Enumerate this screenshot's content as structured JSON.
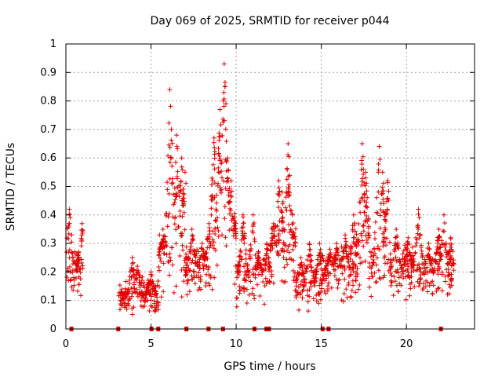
{
  "chart_data": {
    "type": "scatter",
    "title": "Day 069 of 2025, SRMTID for receiver p044",
    "xlabel": "GPS time / hours",
    "ylabel": "SRMTID / TECUs",
    "xlim": [
      0,
      24
    ],
    "ylim": [
      0,
      1
    ],
    "grid": true,
    "marker": "+",
    "color": "#e00000",
    "x_ticks": [
      0,
      5,
      10,
      15,
      20
    ],
    "x_tick_labels": [
      "0",
      "5",
      "10",
      "15",
      "20"
    ],
    "y_ticks": [
      0,
      0.1,
      0.2,
      0.3,
      0.4,
      0.5,
      0.6,
      0.7,
      0.8,
      0.9,
      1
    ],
    "y_tick_labels": [
      "0",
      "0.1",
      "0.2",
      "0.3",
      "0.4",
      "0.5",
      "0.6",
      "0.7",
      "0.8",
      "0.9",
      "1"
    ],
    "zero_markers_x": [
      0.35,
      3.1,
      5.05,
      5.45,
      7.1,
      8.4,
      9.25,
      11.1,
      11.8,
      11.95,
      15.1,
      15.45,
      22.05
    ],
    "segments": [
      {
        "start": 0.0,
        "end": 1.0,
        "base": 0.2,
        "amp": 0.08,
        "peaks": [
          [
            0.2,
            0.42
          ],
          [
            0.95,
            0.37
          ]
        ]
      },
      {
        "start": 3.1,
        "end": 5.45,
        "base": 0.11,
        "amp": 0.06,
        "peaks": [
          [
            3.9,
            0.25
          ],
          [
            4.2,
            0.22
          ],
          [
            5.0,
            0.2
          ]
        ]
      },
      {
        "start": 5.45,
        "end": 7.0,
        "base": 0.23,
        "amp": 0.12,
        "peaks": [
          [
            5.7,
            0.35
          ],
          [
            6.1,
            0.84
          ],
          [
            6.2,
            0.7
          ],
          [
            6.5,
            0.68
          ],
          [
            6.8,
            0.6
          ],
          [
            7.0,
            0.55
          ]
        ]
      },
      {
        "start": 7.0,
        "end": 8.5,
        "base": 0.2,
        "amp": 0.08,
        "peaks": [
          [
            7.4,
            0.35
          ],
          [
            8.0,
            0.3
          ],
          [
            8.4,
            0.37
          ]
        ]
      },
      {
        "start": 8.5,
        "end": 10.0,
        "base": 0.28,
        "amp": 0.15,
        "peaks": [
          [
            8.7,
            0.67
          ],
          [
            9.05,
            0.77
          ],
          [
            9.3,
            0.93
          ],
          [
            9.35,
            0.85
          ],
          [
            9.5,
            0.6
          ],
          [
            9.7,
            0.52
          ],
          [
            9.9,
            0.38
          ]
        ]
      },
      {
        "start": 10.0,
        "end": 12.0,
        "base": 0.18,
        "amp": 0.08,
        "peaks": [
          [
            10.4,
            0.4
          ],
          [
            11.0,
            0.4
          ],
          [
            11.3,
            0.27
          ],
          [
            11.8,
            0.3
          ]
        ]
      },
      {
        "start": 12.0,
        "end": 13.5,
        "base": 0.24,
        "amp": 0.12,
        "peaks": [
          [
            12.2,
            0.37
          ],
          [
            12.5,
            0.52
          ],
          [
            12.7,
            0.48
          ],
          [
            13.05,
            0.65
          ],
          [
            13.3,
            0.4
          ]
        ]
      },
      {
        "start": 13.5,
        "end": 15.0,
        "base": 0.15,
        "amp": 0.07,
        "peaks": [
          [
            13.8,
            0.25
          ],
          [
            14.3,
            0.3
          ],
          [
            14.9,
            0.3
          ]
        ]
      },
      {
        "start": 15.0,
        "end": 17.0,
        "base": 0.19,
        "amp": 0.08,
        "peaks": [
          [
            15.5,
            0.28
          ],
          [
            15.9,
            0.3
          ],
          [
            16.4,
            0.33
          ],
          [
            16.9,
            0.4
          ]
        ]
      },
      {
        "start": 17.0,
        "end": 19.0,
        "base": 0.23,
        "amp": 0.12,
        "peaks": [
          [
            17.4,
            0.65
          ],
          [
            17.6,
            0.55
          ],
          [
            18.4,
            0.64
          ],
          [
            18.6,
            0.55
          ],
          [
            18.9,
            0.52
          ]
        ]
      },
      {
        "start": 19.0,
        "end": 21.0,
        "base": 0.2,
        "amp": 0.08,
        "peaks": [
          [
            19.4,
            0.35
          ],
          [
            20.1,
            0.32
          ],
          [
            20.7,
            0.42
          ]
        ]
      },
      {
        "start": 21.0,
        "end": 22.8,
        "base": 0.18,
        "amp": 0.07,
        "peaks": [
          [
            21.3,
            0.3
          ],
          [
            21.9,
            0.35
          ],
          [
            22.2,
            0.4
          ],
          [
            22.6,
            0.32
          ]
        ]
      }
    ]
  }
}
